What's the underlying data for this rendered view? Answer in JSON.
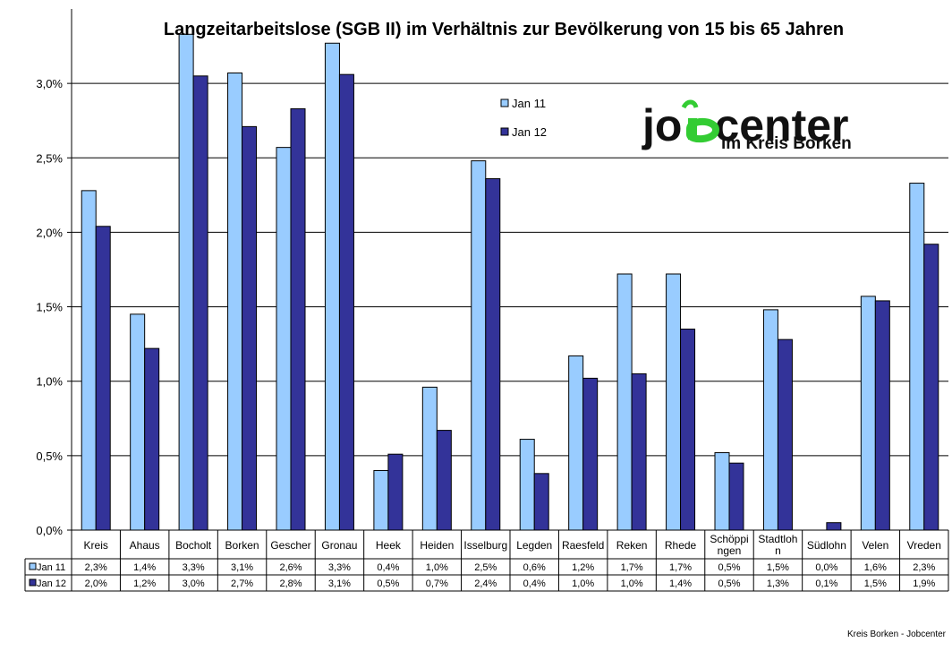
{
  "chart_data": {
    "type": "bar",
    "title": "Langzeitarbeitslose (SGB II) im Verhältnis zur Bevölkerung von 15 bis 65 Jahren",
    "categories": [
      "Kreis",
      "Ahaus",
      "Bocholt",
      "Borken",
      "Gescher",
      "Gronau",
      "Heek",
      "Heiden",
      "Isselburg",
      "Legden",
      "Raesfeld",
      "Reken",
      "Rhede",
      "Schöppingen",
      "Stadtlohn",
      "Südlohn",
      "Velen",
      "Vreden"
    ],
    "category_labels": [
      [
        "Kreis"
      ],
      [
        "Ahaus"
      ],
      [
        "Bocholt"
      ],
      [
        "Borken"
      ],
      [
        "Gescher"
      ],
      [
        "Gronau"
      ],
      [
        "Heek"
      ],
      [
        "Heiden"
      ],
      [
        "Isselburg"
      ],
      [
        "Legden"
      ],
      [
        "Raesfeld"
      ],
      [
        "Reken"
      ],
      [
        "Rhede"
      ],
      [
        "Schöppi",
        "ngen"
      ],
      [
        "Stadtloh",
        "n"
      ],
      [
        "Südlohn"
      ],
      [
        "Velen"
      ],
      [
        "Vreden"
      ]
    ],
    "series": [
      {
        "name": "Jan 11",
        "color": "#99ccff",
        "values": [
          2.28,
          1.45,
          3.33,
          3.07,
          2.57,
          3.27,
          0.4,
          0.96,
          2.48,
          0.61,
          1.17,
          1.72,
          1.72,
          0.52,
          1.48,
          0.0,
          1.57,
          2.33
        ],
        "labels": [
          "2,3%",
          "1,4%",
          "3,3%",
          "3,1%",
          "2,6%",
          "3,3%",
          "0,4%",
          "1,0%",
          "2,5%",
          "0,6%",
          "1,2%",
          "1,7%",
          "1,7%",
          "0,5%",
          "1,5%",
          "0,0%",
          "1,6%",
          "2,3%"
        ]
      },
      {
        "name": "Jan 12",
        "color": "#333399",
        "values": [
          2.04,
          1.22,
          3.05,
          2.71,
          2.83,
          3.06,
          0.51,
          0.67,
          2.36,
          0.38,
          1.02,
          1.05,
          1.35,
          0.45,
          1.28,
          0.05,
          1.54,
          1.92
        ],
        "labels": [
          "2,0%",
          "1,2%",
          "3,0%",
          "2,7%",
          "2,8%",
          "3,1%",
          "0,5%",
          "0,7%",
          "2,4%",
          "0,4%",
          "1,0%",
          "1,0%",
          "1,4%",
          "0,5%",
          "1,3%",
          "0,1%",
          "1,5%",
          "1,9%"
        ]
      }
    ],
    "y_ticks": [
      0,
      0.5,
      1.0,
      1.5,
      2.0,
      2.5,
      3.0
    ],
    "y_tick_labels": [
      "0,0%",
      "0,5%",
      "1,0%",
      "1,5%",
      "2,0%",
      "2,5%",
      "3,0%"
    ],
    "ylim": [
      0,
      3.5
    ],
    "grid": true,
    "legend_position": "top-center",
    "data_table": true
  },
  "logo": {
    "part1": "jo",
    "part2": "center",
    "subtitle": "im Kreis Borken"
  },
  "footer": "Kreis Borken - Jobcenter"
}
